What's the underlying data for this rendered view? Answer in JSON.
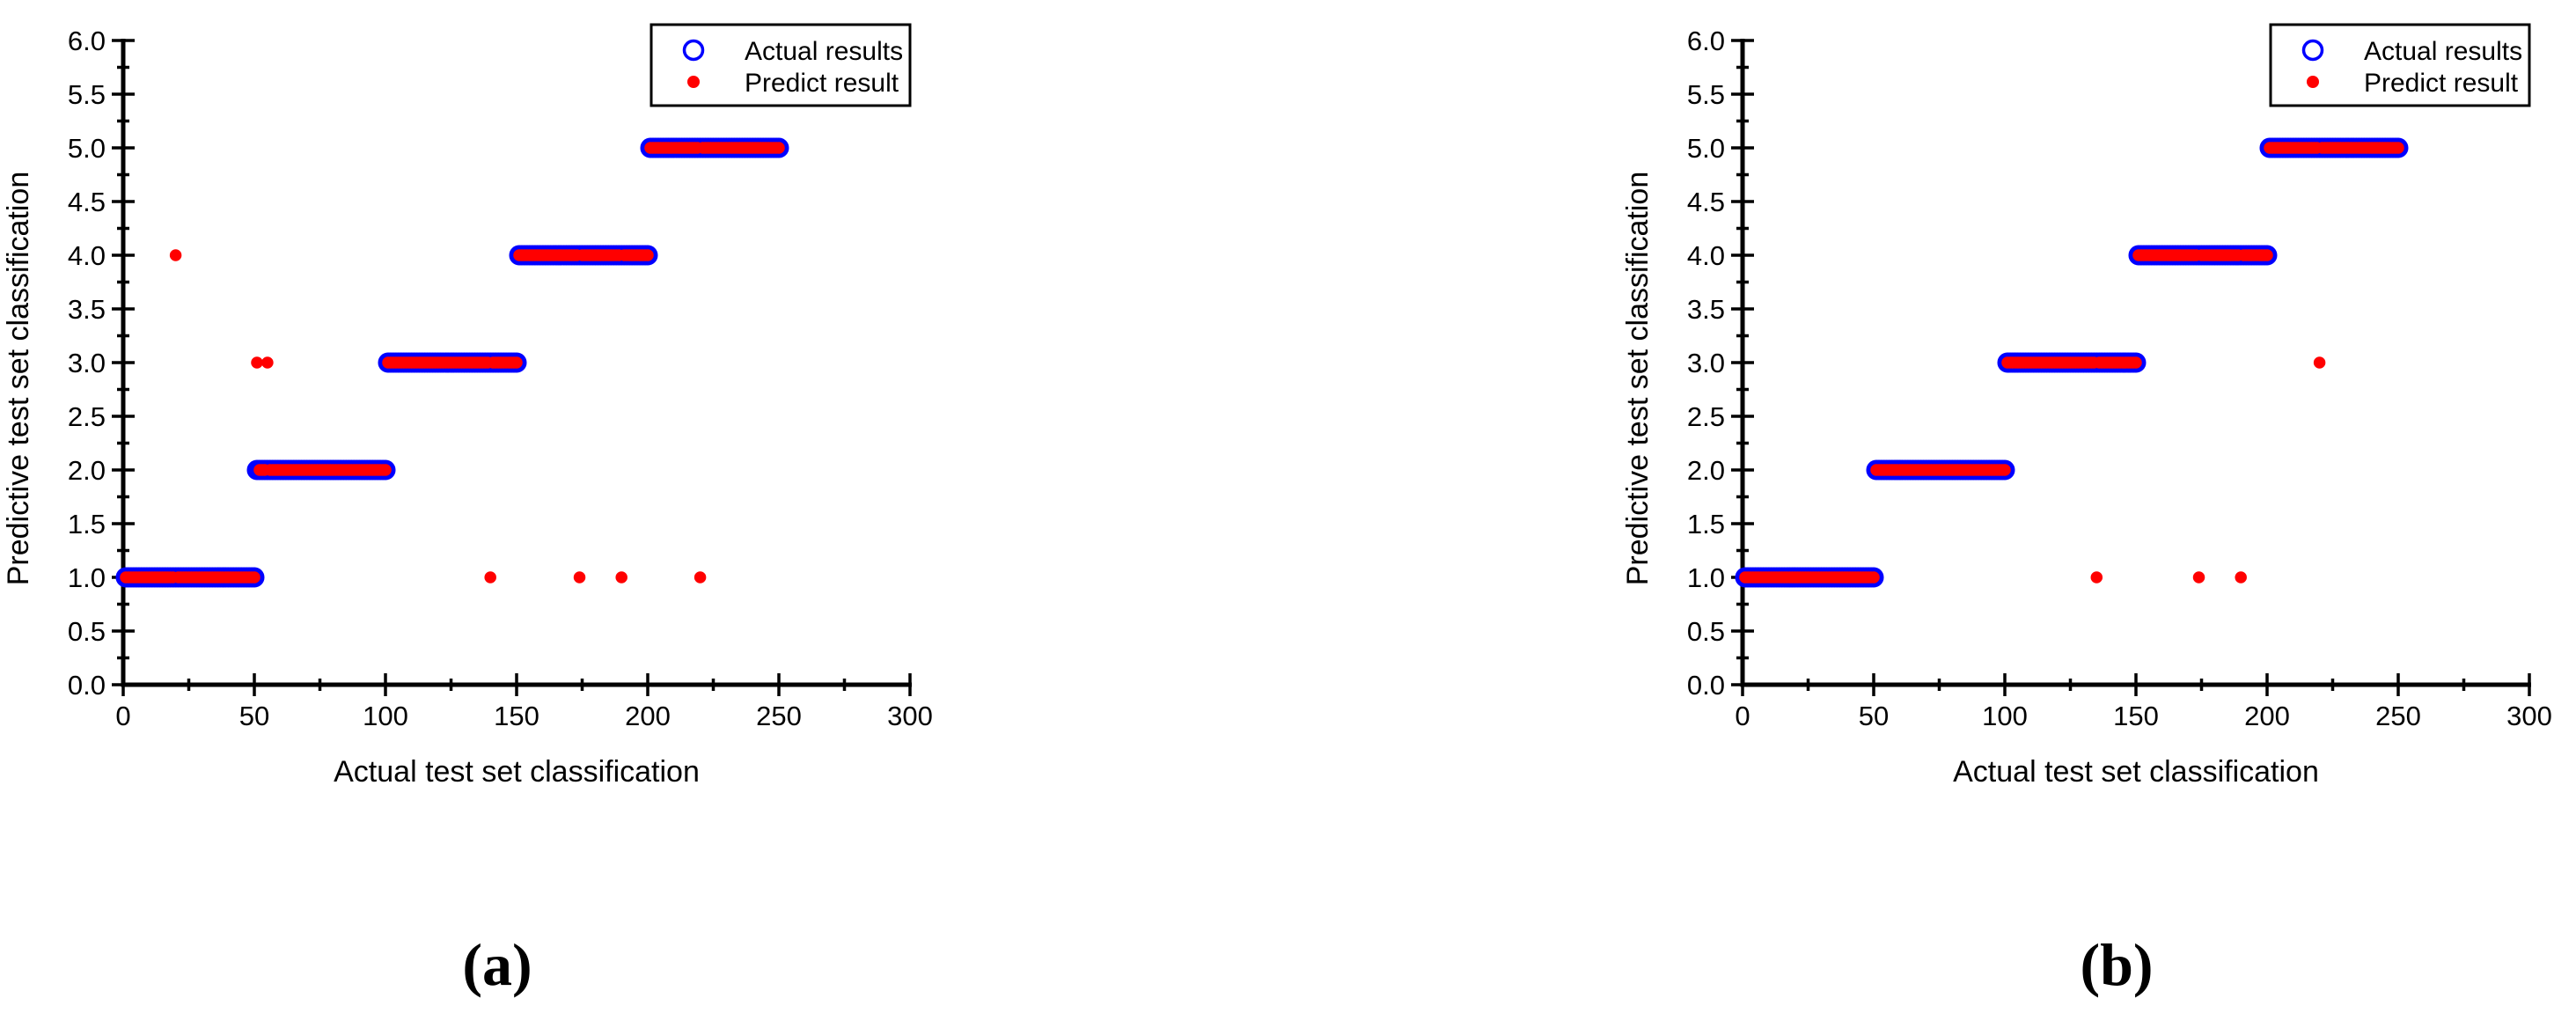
{
  "figure": {
    "background_color": "#ffffff",
    "axis_color": "#000000",
    "text_color": "#000000"
  },
  "chart_data": [
    {
      "type": "scatter",
      "panel_caption": "(a)",
      "title": "",
      "xlabel": "Actual test set classification",
      "ylabel": "Predictive test set classification",
      "xlim": [
        0,
        300
      ],
      "ylim": [
        0.0,
        6.0
      ],
      "grid": false,
      "x_major_ticks": [
        0,
        50,
        100,
        150,
        200,
        250,
        300
      ],
      "x_tick_labels": [
        "0",
        "50",
        "100",
        "150",
        "200",
        "250",
        "300"
      ],
      "x_minor_ticks": [
        25,
        75,
        125,
        175,
        225,
        275
      ],
      "y_major_ticks": [
        0,
        0.5,
        1,
        1.5,
        2,
        2.5,
        3,
        3.5,
        4,
        4.5,
        5,
        5.5,
        6
      ],
      "y_tick_labels": [
        "0.0",
        "0.5",
        "1.0",
        "1.5",
        "2.0",
        "2.5",
        "3.0",
        "3.5",
        "4.0",
        "4.5",
        "5.0",
        "5.5",
        "6.0"
      ],
      "y_minor_ticks": [
        0.25,
        0.75,
        1.25,
        1.75,
        2.25,
        2.75,
        3.25,
        3.75,
        4.25,
        4.75,
        5.25,
        5.75
      ],
      "legend": {
        "position": "top-right",
        "items": [
          {
            "label": "Actual results",
            "marker": "open-circle",
            "color": "#0000ff"
          },
          {
            "label": "Predict result",
            "marker": "filled-circle",
            "color": "#ff0000"
          }
        ]
      },
      "series": {
        "actual": {
          "name": "Actual results",
          "color": "#0000ff",
          "bands": [
            {
              "class_label": 1,
              "x_start": 1,
              "x_end": 50,
              "y": 1
            },
            {
              "class_label": 2,
              "x_start": 51,
              "x_end": 100,
              "y": 2
            },
            {
              "class_label": 3,
              "x_start": 101,
              "x_end": 150,
              "y": 3
            },
            {
              "class_label": 4,
              "x_start": 151,
              "x_end": 200,
              "y": 4
            },
            {
              "class_label": 5,
              "x_start": 201,
              "x_end": 250,
              "y": 5
            }
          ]
        },
        "predict": {
          "name": "Predict result",
          "color": "#ff0000",
          "note": "matches actual bands except at outlier sample positions",
          "outliers": [
            {
              "x": 20,
              "y": 4
            },
            {
              "x": 51,
              "y": 3
            },
            {
              "x": 55,
              "y": 3
            },
            {
              "x": 140,
              "y": 1
            },
            {
              "x": 174,
              "y": 1
            },
            {
              "x": 190,
              "y": 1
            },
            {
              "x": 220,
              "y": 1
            }
          ]
        }
      }
    },
    {
      "type": "scatter",
      "panel_caption": "(b)",
      "title": "",
      "xlabel": "Actual test set classification",
      "ylabel": "Predictive test set classification",
      "xlim": [
        0,
        300
      ],
      "ylim": [
        0.0,
        6.0
      ],
      "grid": false,
      "x_major_ticks": [
        0,
        50,
        100,
        150,
        200,
        250,
        300
      ],
      "x_tick_labels": [
        "0",
        "50",
        "100",
        "150",
        "200",
        "250",
        "300"
      ],
      "x_minor_ticks": [
        25,
        75,
        125,
        175,
        225,
        275
      ],
      "y_major_ticks": [
        0,
        0.5,
        1,
        1.5,
        2,
        2.5,
        3,
        3.5,
        4,
        4.5,
        5,
        5.5,
        6
      ],
      "y_tick_labels": [
        "0.0",
        "0.5",
        "1.0",
        "1.5",
        "2.0",
        "2.5",
        "3.0",
        "3.5",
        "4.0",
        "4.5",
        "5.0",
        "5.5",
        "6.0"
      ],
      "y_minor_ticks": [
        0.25,
        0.75,
        1.25,
        1.75,
        2.25,
        2.75,
        3.25,
        3.75,
        4.25,
        4.75,
        5.25,
        5.75
      ],
      "legend": {
        "position": "top-right",
        "items": [
          {
            "label": "Actual results",
            "marker": "open-circle",
            "color": "#0000ff"
          },
          {
            "label": "Predict result",
            "marker": "filled-circle",
            "color": "#ff0000"
          }
        ]
      },
      "series": {
        "actual": {
          "name": "Actual results",
          "color": "#0000ff",
          "bands": [
            {
              "class_label": 1,
              "x_start": 1,
              "x_end": 50,
              "y": 1
            },
            {
              "class_label": 2,
              "x_start": 51,
              "x_end": 100,
              "y": 2
            },
            {
              "class_label": 3,
              "x_start": 101,
              "x_end": 150,
              "y": 3
            },
            {
              "class_label": 4,
              "x_start": 151,
              "x_end": 200,
              "y": 4
            },
            {
              "class_label": 5,
              "x_start": 201,
              "x_end": 250,
              "y": 5
            }
          ]
        },
        "predict": {
          "name": "Predict result",
          "color": "#ff0000",
          "note": "matches actual bands except at outlier sample positions",
          "outliers": [
            {
              "x": 135,
              "y": 1
            },
            {
              "x": 174,
              "y": 1
            },
            {
              "x": 190,
              "y": 1
            },
            {
              "x": 220,
              "y": 3
            }
          ]
        }
      }
    }
  ]
}
